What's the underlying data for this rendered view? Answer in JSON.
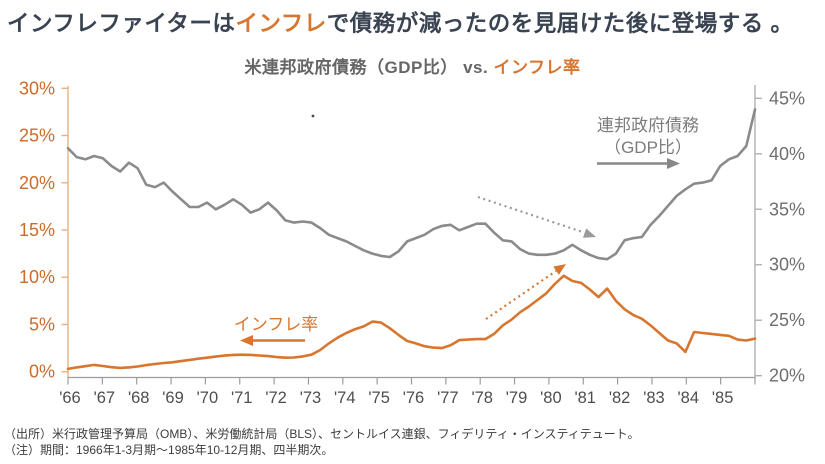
{
  "title": {
    "pre": "インフレファイターは",
    "highlight": "インフレ",
    "post": "で債務が減ったのを見届けた後に登場する 。"
  },
  "subtitle": {
    "pre": "米連邦政府債務（GDP比） vs. ",
    "highlight": "インフレ率"
  },
  "annotations": {
    "debt_label_line1": "連邦政府債務",
    "debt_label_line2": "（GDP比）",
    "inflation_label": "インフレ率"
  },
  "footnotes": {
    "source": "（出所）米行政管理予算局（OMB）、米労働統計局（BLS）、セントルイス連銀、フィデリティ・インスティテュート。",
    "note": "（注）期間：1966年1-3月期～1985年10-12月期、四半期次。"
  },
  "colors": {
    "orange": "#D8762F",
    "orange_axis_label": "#C96C2C",
    "orange_spine": "#E3B383",
    "gray_line": "#8B8B8B",
    "gray_axis": "#9C9C9C",
    "title_dark": "#3A4351"
  },
  "chart_data": {
    "type": "line",
    "title": "米連邦政府債務（GDP比） vs. インフレ率",
    "frequency": "quarterly",
    "period": "1966Q1-1985Q4",
    "x_tick_labels": [
      "'66",
      "'67",
      "'68",
      "'69",
      "'70",
      "'71",
      "'72",
      "'73",
      "'74",
      "'75",
      "'76",
      "'77",
      "'78",
      "'79",
      "'80",
      "'81",
      "'82",
      "'83",
      "'84",
      "'85"
    ],
    "left_axis": {
      "title": "インフレ率",
      "range": [
        0,
        30
      ],
      "ticks": [
        0,
        5,
        10,
        15,
        20,
        25,
        30
      ],
      "tick_labels": [
        "0%",
        "5%",
        "10%",
        "15%",
        "20%",
        "25%",
        "30%"
      ]
    },
    "right_axis": {
      "title": "連邦政府債務（GDP比）",
      "range": [
        20,
        45
      ],
      "ticks": [
        20,
        25,
        30,
        35,
        40,
        45
      ],
      "tick_labels": [
        "20%",
        "25%",
        "30%",
        "35%",
        "40%",
        "45%"
      ]
    },
    "series": [
      {
        "name": "連邦政府債務（GDP比）",
        "axis": "right",
        "color": "#8B8B8B",
        "values": [
          40.5,
          39.7,
          39.5,
          39.8,
          39.6,
          38.9,
          38.4,
          39.2,
          38.7,
          37.2,
          37.0,
          37.4,
          36.6,
          35.9,
          35.2,
          35.2,
          35.6,
          35.0,
          35.4,
          35.9,
          35.4,
          34.7,
          35.0,
          35.6,
          34.9,
          34.0,
          33.8,
          33.9,
          33.8,
          33.3,
          32.7,
          32.4,
          32.1,
          31.7,
          31.3,
          31.0,
          30.8,
          30.7,
          31.2,
          32.1,
          32.4,
          32.7,
          33.2,
          33.5,
          33.6,
          33.1,
          33.4,
          33.7,
          33.7,
          32.9,
          32.2,
          32.1,
          31.4,
          31.0,
          30.9,
          30.9,
          31.0,
          31.3,
          31.8,
          31.3,
          30.9,
          30.6,
          30.5,
          31.0,
          32.2,
          32.4,
          32.5,
          33.6,
          34.4,
          35.3,
          36.2,
          36.8,
          37.3,
          37.4,
          37.6,
          38.9,
          39.5,
          39.8,
          40.7,
          44.0
        ]
      },
      {
        "name": "インフレ率",
        "axis": "left",
        "color": "#D8762F",
        "values": [
          0.3,
          0.45,
          0.58,
          0.72,
          0.6,
          0.48,
          0.4,
          0.45,
          0.55,
          0.7,
          0.82,
          0.92,
          1.0,
          1.12,
          1.25,
          1.38,
          1.48,
          1.6,
          1.7,
          1.78,
          1.8,
          1.78,
          1.72,
          1.65,
          1.55,
          1.48,
          1.5,
          1.62,
          1.8,
          2.3,
          3.0,
          3.6,
          4.1,
          4.5,
          4.8,
          5.3,
          5.2,
          4.6,
          3.9,
          3.25,
          3.0,
          2.7,
          2.55,
          2.5,
          2.8,
          3.35,
          3.4,
          3.45,
          3.45,
          4.0,
          4.9,
          5.5,
          6.3,
          6.9,
          7.6,
          8.3,
          9.3,
          10.15,
          9.6,
          9.4,
          8.7,
          7.9,
          8.8,
          7.5,
          6.6,
          6.0,
          5.6,
          4.9,
          4.1,
          3.3,
          3.0,
          2.1,
          4.2,
          4.1,
          4.0,
          3.9,
          3.8,
          3.4,
          3.3,
          3.5
        ]
      }
    ]
  }
}
